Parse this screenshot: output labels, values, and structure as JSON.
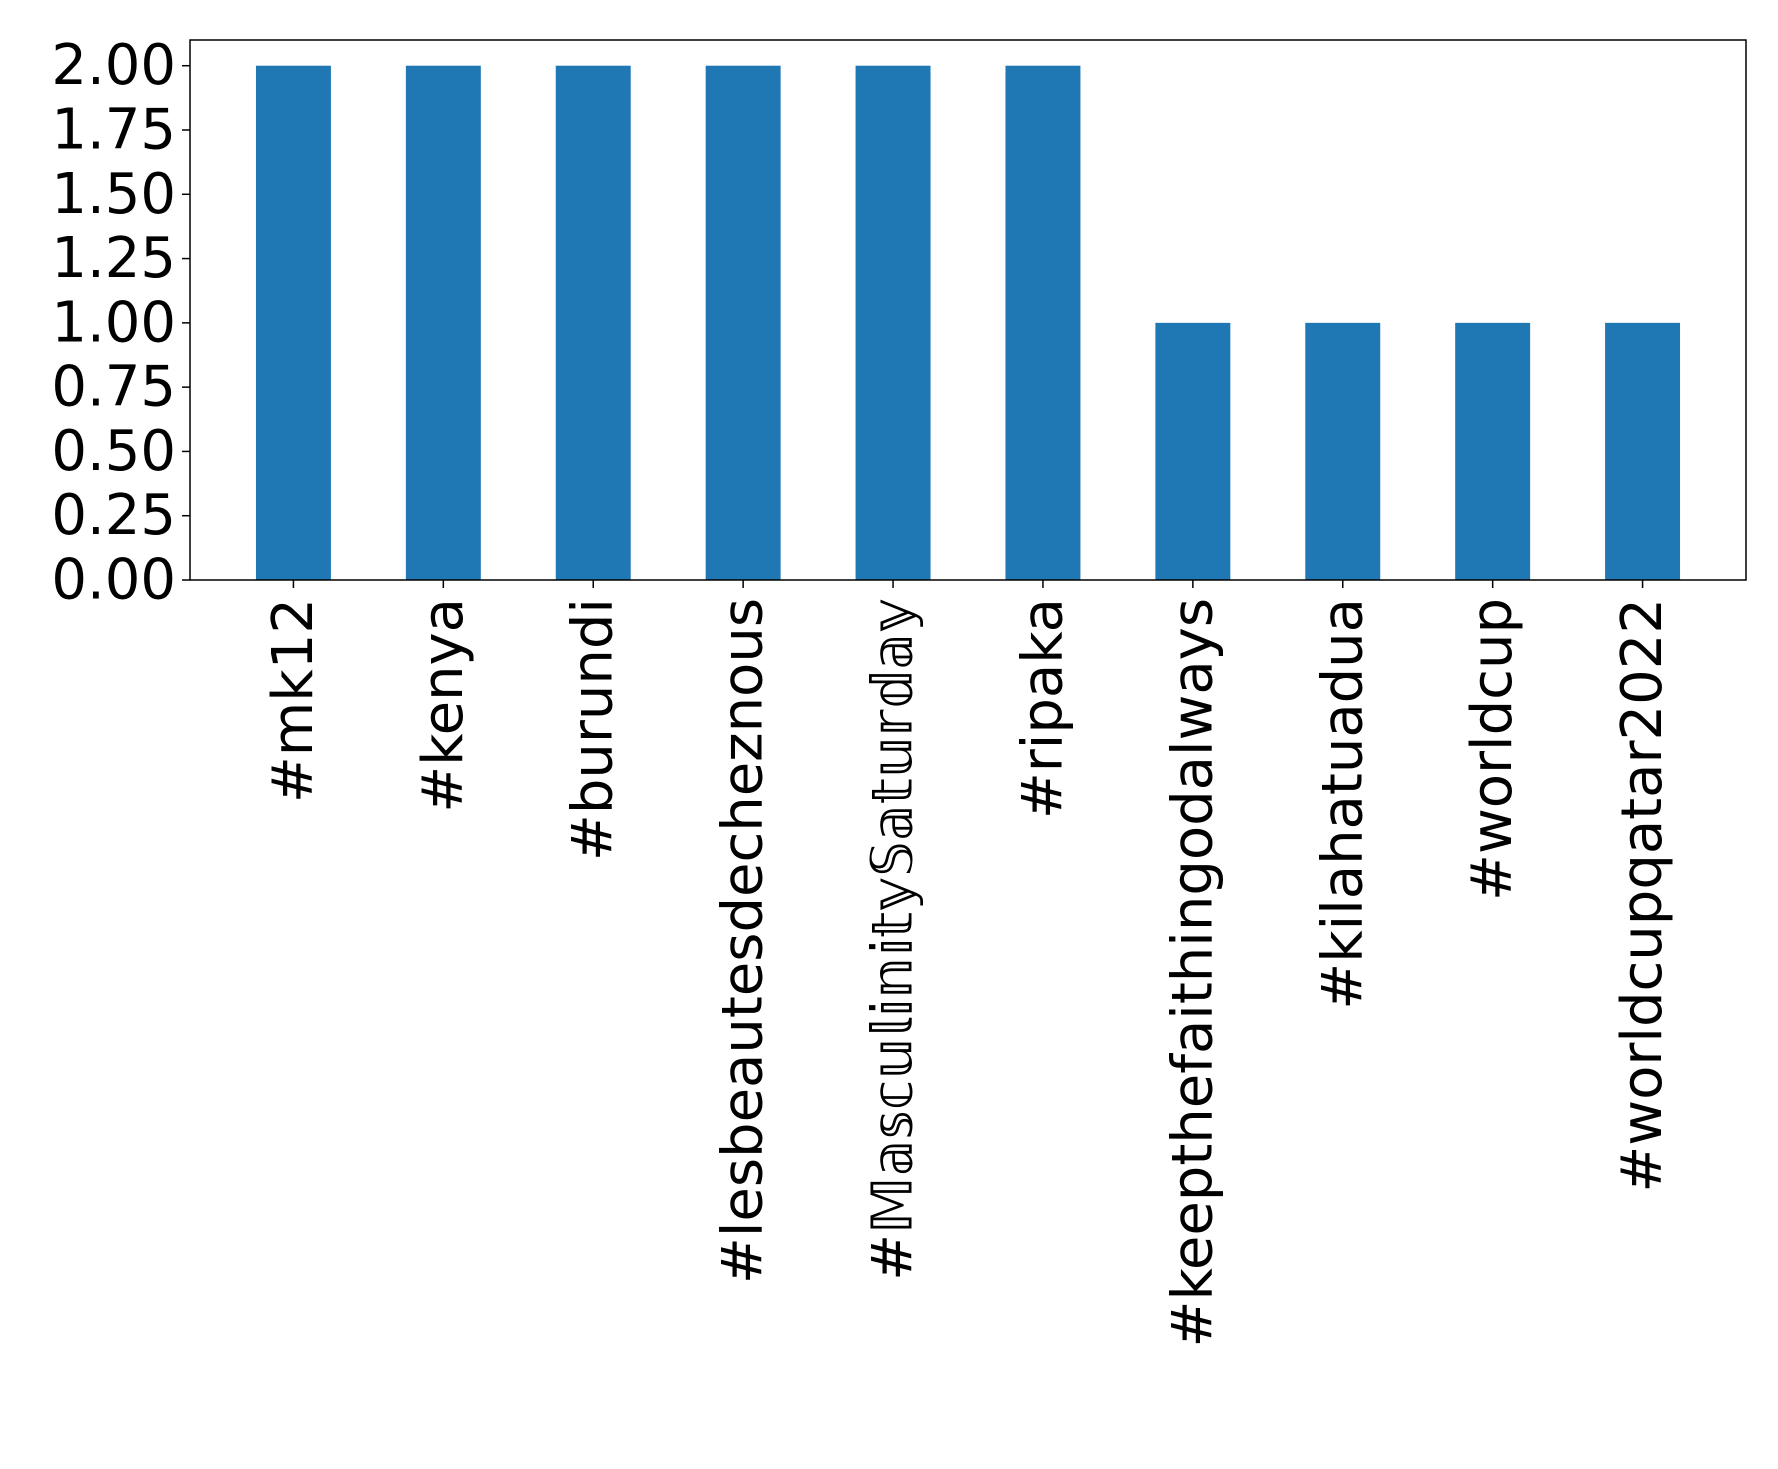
{
  "chart_data": {
    "type": "bar",
    "title": "",
    "xlabel": "",
    "ylabel": "",
    "categories": [
      "#mk12",
      "#kenya",
      "#burundi",
      "#lesbeautesdecheznous",
      "#𝕄𝕒𝕤𝕔𝕦𝕝𝕚𝕟𝕚𝕥𝕪𝕊𝕒𝕥𝕦𝕣𝕕𝕒𝕪",
      "#ripaka",
      "#keepthefaithingodalways",
      "#kilahatuadua",
      "#worldcup",
      "#worldcupqatar2022"
    ],
    "values": [
      2,
      2,
      2,
      2,
      2,
      2,
      1,
      1,
      1,
      1
    ],
    "ylim": [
      0,
      2.1
    ],
    "yticks": [
      "0.00",
      "0.25",
      "0.50",
      "0.75",
      "1.00",
      "1.25",
      "1.50",
      "1.75",
      "2.00"
    ],
    "bar_color": "#1f77b4",
    "grid": false,
    "legend": "none"
  }
}
